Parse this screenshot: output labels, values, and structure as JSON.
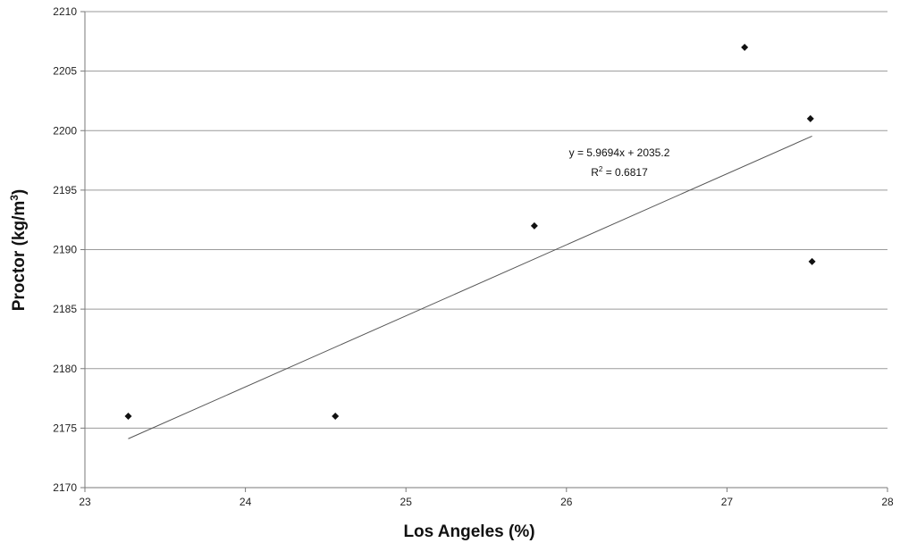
{
  "chart_data": {
    "type": "scatter",
    "title": "",
    "xlabel": "Los Angeles (%)",
    "ylabel_main": "Proctor (kg/m",
    "ylabel_sup": "3",
    "ylabel_close": ")",
    "xlim": [
      23,
      28
    ],
    "ylim": [
      2170,
      2210
    ],
    "xticks": [
      23,
      24,
      25,
      26,
      27,
      28
    ],
    "yticks": [
      2170,
      2175,
      2180,
      2185,
      2190,
      2195,
      2200,
      2205,
      2210
    ],
    "grid": true,
    "points": [
      {
        "x": 23.27,
        "y": 2176
      },
      {
        "x": 24.56,
        "y": 2176
      },
      {
        "x": 25.8,
        "y": 2192
      },
      {
        "x": 27.11,
        "y": 2207
      },
      {
        "x": 27.52,
        "y": 2201
      },
      {
        "x": 27.53,
        "y": 2189
      }
    ],
    "trendline": {
      "slope": 5.9694,
      "intercept": 2035.2,
      "x_start": 23.27,
      "x_end": 27.53,
      "equation_text": "y = 5.9694x + 2035.2",
      "r2_prefix": "R",
      "r2_sup": "2",
      "r2_value": " = 0.6817"
    },
    "colors": {
      "grid": "#9a9a9a",
      "axis": "#7a7a7a",
      "marker": "#111111",
      "trendline": "#555555"
    }
  }
}
